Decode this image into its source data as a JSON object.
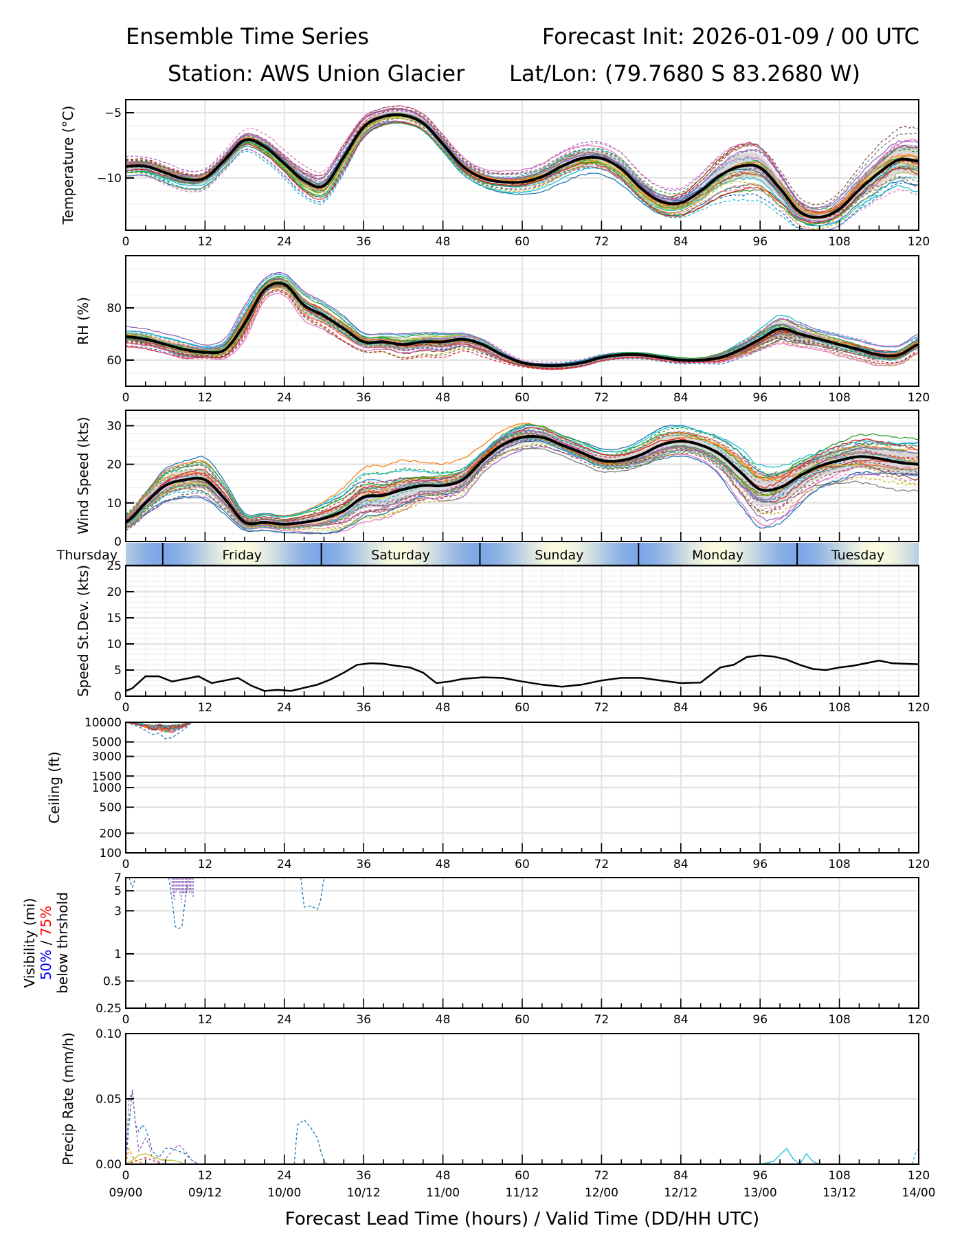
{
  "header": {
    "title_left": "Ensemble Time Series",
    "title_right": "Forecast Init: 2026-01-09 / 00 UTC",
    "station": "Station: AWS Union Glacier",
    "latlon": "Lat/Lon: (79.7680 S 83.2680 W)"
  },
  "x_axis": {
    "label": "Forecast Lead Time (hours) / Valid Time (DD/HH UTC)",
    "lead_ticks": [
      0,
      12,
      24,
      36,
      48,
      60,
      72,
      84,
      96,
      108,
      120
    ],
    "valid_ticks": [
      "09/00",
      "09/12",
      "10/00",
      "10/12",
      "11/00",
      "11/12",
      "12/00",
      "12/12",
      "13/00",
      "13/12",
      "14/00"
    ],
    "range": [
      0,
      120
    ]
  },
  "day_band": {
    "days": [
      {
        "label": "Thursday",
        "start": 0,
        "end": 5.6
      },
      {
        "label": "Friday",
        "start": 5.6,
        "end": 29.6
      },
      {
        "label": "Saturday",
        "start": 29.6,
        "end": 53.6
      },
      {
        "label": "Sunday",
        "start": 53.6,
        "end": 77.6
      },
      {
        "label": "Monday",
        "start": 77.6,
        "end": 101.6
      },
      {
        "label": "Tuesday",
        "start": 101.6,
        "end": 120
      }
    ],
    "colors": {
      "night": "#7ea7e6",
      "noon": "#fbfbe0"
    }
  },
  "chart_data": [
    {
      "type": "line",
      "id": "temperature",
      "ylabel": "Temperature (°C)",
      "ylim": [
        -14,
        -4
      ],
      "yticks": [
        -10,
        -5
      ],
      "ytick_labels": [
        "−10",
        "−5"
      ],
      "grid": true,
      "x": [
        0,
        3,
        6,
        9,
        12,
        15,
        18,
        21,
        24,
        27,
        30,
        33,
        36,
        39,
        42,
        45,
        48,
        51,
        54,
        57,
        60,
        63,
        66,
        69,
        72,
        75,
        78,
        81,
        84,
        87,
        90,
        93,
        96,
        99,
        102,
        105,
        108,
        111,
        114,
        117,
        120
      ],
      "mean": [
        -9.1,
        -9.1,
        -9.6,
        -10.1,
        -10.0,
        -8.6,
        -7.1,
        -7.6,
        -8.9,
        -10.2,
        -10.6,
        -8.4,
        -6.1,
        -5.3,
        -5.2,
        -5.8,
        -7.4,
        -9.1,
        -10.0,
        -10.3,
        -10.3,
        -9.9,
        -9.1,
        -8.5,
        -8.5,
        -9.3,
        -10.8,
        -11.8,
        -11.9,
        -11.0,
        -9.8,
        -9.1,
        -9.2,
        -10.8,
        -12.6,
        -13.0,
        -12.4,
        -10.9,
        -9.6,
        -8.6,
        -8.7
      ],
      "spread": [
        0.6,
        0.6,
        0.7,
        0.7,
        0.7,
        0.6,
        0.6,
        0.7,
        0.7,
        0.8,
        0.8,
        0.8,
        0.6,
        0.5,
        0.5,
        0.5,
        0.5,
        0.5,
        0.5,
        0.6,
        0.7,
        0.8,
        0.9,
        0.9,
        0.9,
        0.9,
        0.8,
        0.8,
        0.8,
        1.0,
        1.3,
        1.6,
        1.6,
        1.3,
        0.9,
        0.8,
        1.0,
        1.3,
        1.6,
        1.8,
        2.0
      ],
      "series": "ensemble members (dashed/solid, tab10 colors) + ensemble mean (thick black) + shaded 25-75% band"
    },
    {
      "type": "line",
      "id": "rh",
      "ylabel": "RH (%)",
      "ylim": [
        50,
        100
      ],
      "yticks": [
        60,
        80
      ],
      "ytick_labels": [
        "60",
        "80"
      ],
      "grid": true,
      "x": [
        0,
        3,
        6,
        9,
        12,
        15,
        18,
        21,
        24,
        27,
        30,
        33,
        36,
        39,
        42,
        45,
        48,
        51,
        54,
        57,
        60,
        63,
        66,
        69,
        72,
        75,
        78,
        81,
        84,
        87,
        90,
        93,
        96,
        99,
        102,
        105,
        108,
        111,
        114,
        117,
        120
      ],
      "mean": [
        69,
        68,
        66,
        64,
        63,
        64,
        74,
        87,
        89,
        81,
        77,
        72,
        67,
        67,
        66,
        67,
        67,
        68,
        66,
        62,
        59,
        58,
        58,
        59,
        61,
        62,
        62,
        61,
        60,
        60,
        61,
        64,
        68,
        72,
        70,
        68,
        66,
        64,
        62,
        62,
        66
      ],
      "spread": [
        3,
        3,
        3,
        3,
        2,
        3,
        5,
        3,
        3,
        4,
        4,
        4,
        3,
        3,
        4,
        4,
        4,
        3,
        3,
        2,
        1,
        1,
        1,
        1,
        1,
        1,
        1,
        1,
        1,
        1,
        2,
        3,
        4,
        5,
        4,
        3,
        3,
        3,
        3,
        3,
        3
      ]
    },
    {
      "type": "line",
      "id": "wind_speed",
      "ylabel": "Wind Speed (kts)",
      "ylim": [
        0,
        34
      ],
      "yticks": [
        0,
        10,
        20,
        30
      ],
      "ytick_labels": [
        "0",
        "10",
        "20",
        "30"
      ],
      "grid": true,
      "x": [
        0,
        3,
        6,
        9,
        12,
        15,
        18,
        21,
        24,
        27,
        30,
        33,
        36,
        39,
        42,
        45,
        48,
        51,
        54,
        57,
        60,
        63,
        66,
        69,
        72,
        75,
        78,
        81,
        84,
        87,
        90,
        93,
        96,
        99,
        102,
        105,
        108,
        111,
        114,
        117,
        120
      ],
      "mean": [
        5,
        10,
        14.5,
        16,
        16,
        11,
        5,
        5,
        4.5,
        5,
        6,
        8,
        11.5,
        12,
        13.5,
        14.5,
        14.5,
        16,
        21,
        25,
        27,
        27,
        25,
        23,
        21,
        21,
        22.5,
        25,
        26,
        25,
        22.5,
        18,
        13.5,
        14,
        17,
        19.5,
        21,
        22,
        21.5,
        20.5,
        20
      ],
      "spread": [
        2,
        3,
        4,
        4,
        4,
        3,
        1.5,
        1.5,
        1.5,
        2,
        3,
        4,
        5,
        5,
        5,
        4,
        4,
        4,
        3,
        3,
        3,
        2.5,
        2,
        2,
        2,
        2,
        2.5,
        3,
        3,
        3,
        4,
        6,
        7,
        7,
        6,
        5,
        5,
        5,
        5,
        5,
        5
      ]
    },
    {
      "type": "line",
      "id": "speed_stdev",
      "ylabel": "Speed St.Dev. (kts)",
      "ylim": [
        0,
        25
      ],
      "yticks": [
        0,
        5,
        10,
        15,
        20,
        25
      ],
      "ytick_labels": [
        "0",
        "5",
        "10",
        "15",
        "20",
        "25"
      ],
      "grid": true,
      "x": [
        0,
        1,
        3,
        5,
        7,
        9,
        11,
        13,
        15,
        17,
        19,
        21,
        23,
        25,
        27,
        29,
        31,
        33,
        35,
        37,
        39,
        41,
        43,
        45,
        47,
        49,
        51,
        54,
        57,
        60,
        63,
        66,
        69,
        72,
        75,
        78,
        81,
        84,
        87,
        90,
        92,
        94,
        96,
        98,
        100,
        102,
        104,
        106,
        108,
        110,
        112,
        114,
        116,
        118,
        120
      ],
      "values": [
        1.0,
        1.5,
        3.8,
        3.8,
        2.8,
        3.3,
        3.8,
        2.5,
        3.0,
        3.5,
        2.0,
        1.0,
        1.2,
        1.0,
        1.6,
        2.2,
        3.2,
        4.5,
        6.0,
        6.3,
        6.2,
        5.8,
        5.5,
        4.5,
        2.5,
        2.8,
        3.3,
        3.6,
        3.5,
        2.8,
        2.2,
        1.8,
        2.2,
        3.0,
        3.5,
        3.5,
        3.0,
        2.5,
        2.6,
        5.5,
        6.0,
        7.5,
        7.8,
        7.6,
        7.0,
        6.0,
        5.2,
        5.0,
        5.5,
        5.8,
        6.3,
        6.8,
        6.3,
        6.2,
        6.1
      ]
    },
    {
      "type": "line",
      "id": "ceiling",
      "ylabel": "Ceiling (ft)",
      "yscale": "log",
      "ylim": [
        100,
        10000
      ],
      "yticks": [
        100,
        200,
        500,
        1000,
        1500,
        3000,
        5000,
        10000
      ],
      "ytick_labels": [
        "100",
        "200",
        "500",
        "1000",
        "1500",
        "3000",
        "5000",
        "10000"
      ],
      "grid": true,
      "note": "Members below 10000 ft only during lead hours 0-10; lowest member about 5500 ft near hour 6",
      "lowest_member": {
        "x": [
          0,
          2,
          4,
          5,
          6,
          7,
          8,
          9,
          10
        ],
        "values": [
          10000,
          8500,
          6500,
          6800,
          5600,
          5800,
          6800,
          8000,
          10000
        ]
      }
    },
    {
      "type": "line",
      "id": "visibility",
      "ylabel": "Visibility (mi)",
      "ylabel_line2": "below thrshold",
      "threshold_50": "50%",
      "threshold_sep": " / ",
      "threshold_75": "75%",
      "threshold_50_color": "#0000ff",
      "threshold_75_color": "#ff0000",
      "yscale": "log",
      "ylim": [
        0.25,
        7
      ],
      "yticks": [
        0.25,
        0.5,
        1,
        3,
        5,
        7
      ],
      "ytick_labels": [
        "0.25",
        "0.5",
        "1",
        "3",
        "5",
        "7"
      ],
      "grid": true,
      "dips": [
        {
          "x": [
            0.5,
            1,
            1.5
          ],
          "values": [
            7,
            5.5,
            7
          ]
        },
        {
          "x": [
            6.5,
            7,
            7.5,
            8,
            8.5,
            9,
            9.5
          ],
          "values": [
            7,
            4,
            2,
            1.9,
            2.0,
            4,
            7
          ]
        },
        {
          "x": [
            26.5,
            27,
            28,
            29,
            29.5,
            30
          ],
          "values": [
            7,
            3.3,
            3.4,
            3.1,
            4,
            7
          ]
        }
      ]
    },
    {
      "type": "line",
      "id": "precip",
      "ylabel": "Precip Rate (mm/h)",
      "ylim": [
        0,
        0.1
      ],
      "yticks": [
        0,
        0.05,
        0.1
      ],
      "ytick_labels": [
        "0.00",
        "0.05",
        "0.10"
      ],
      "grid": true,
      "members": [
        {
          "color": "#1f77b4",
          "dash": true,
          "x": [
            0,
            0.5,
            1,
            1.5,
            2,
            2.5,
            3,
            3.5,
            4,
            5,
            6,
            7,
            8,
            9,
            10,
            11
          ],
          "values": [
            0,
            0.03,
            0.057,
            0.03,
            0.025,
            0.03,
            0.027,
            0.02,
            0.01,
            0.005,
            0.012,
            0.012,
            0.01,
            0.008,
            0.003,
            0
          ]
        },
        {
          "color": "#9467bd",
          "dash": true,
          "x": [
            0,
            0.5,
            1,
            1.5,
            2,
            2.5,
            3,
            3.5,
            4,
            5,
            6,
            7,
            8,
            9,
            10,
            11
          ],
          "values": [
            0,
            0.05,
            0.055,
            0.03,
            0.01,
            0.015,
            0.02,
            0.015,
            0.005,
            0.002,
            0.004,
            0.01,
            0.015,
            0.01,
            0.003,
            0
          ]
        },
        {
          "color": "#bcbd22",
          "dash": false,
          "x": [
            0,
            1,
            2,
            3,
            4,
            5,
            6,
            7,
            8,
            9
          ],
          "values": [
            0,
            0.003,
            0.007,
            0.008,
            0.006,
            0.004,
            0.003,
            0.003,
            0.002,
            0
          ]
        },
        {
          "color": "#ff7f0e",
          "dash": true,
          "x": [
            0,
            0.5,
            1,
            1.5,
            2,
            3
          ],
          "values": [
            0,
            0.012,
            0.006,
            0.003,
            0.002,
            0
          ]
        },
        {
          "color": "#d62728",
          "dash": true,
          "x": [
            0,
            2,
            3,
            4,
            5,
            6
          ],
          "values": [
            0,
            0.003,
            0.005,
            0.003,
            0.001,
            0
          ]
        },
        {
          "color": "#1f77b4",
          "dash": true,
          "x": [
            25.5,
            26,
            26.5,
            27,
            28,
            29,
            29.5,
            30,
            30.5
          ],
          "values": [
            0,
            0.03,
            0.032,
            0.034,
            0.028,
            0.02,
            0.01,
            0.003,
            0
          ]
        },
        {
          "color": "#17becf",
          "dash": false,
          "x": [
            96,
            97,
            98,
            99,
            100,
            101,
            102,
            103,
            104,
            105
          ],
          "values": [
            0,
            0.001,
            0.002,
            0.007,
            0.012,
            0.004,
            0,
            0.008,
            0.002,
            0
          ]
        },
        {
          "color": "#17becf",
          "dash": true,
          "x": [
            119,
            119.5,
            120
          ],
          "values": [
            0,
            0.008,
            0.012
          ]
        }
      ]
    }
  ]
}
